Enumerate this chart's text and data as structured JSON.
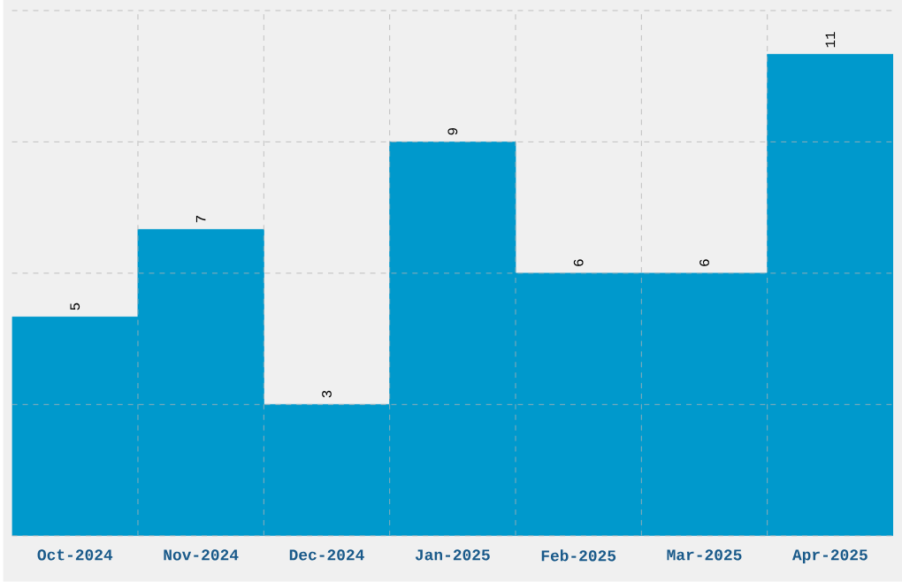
{
  "chart_data": {
    "type": "bar",
    "categories": [
      "Oct-2024",
      "Nov-2024",
      "Dec-2024",
      "Jan-2025",
      "Feb-2025",
      "Mar-2025",
      "Apr-2025"
    ],
    "values": [
      5,
      7,
      3,
      9,
      6,
      6,
      11
    ],
    "color": "#0099cc",
    "ylim": [
      0,
      12
    ],
    "yticks": [
      {
        "value": 0,
        "label": null
      },
      {
        "value": 3,
        "label": null
      },
      {
        "value": 6,
        "label": null
      },
      {
        "value": 9,
        "label": null
      },
      {
        "value": 12,
        "label": null
      }
    ],
    "tick_labels": "x",
    "grid": true,
    "data_labels": true
  }
}
